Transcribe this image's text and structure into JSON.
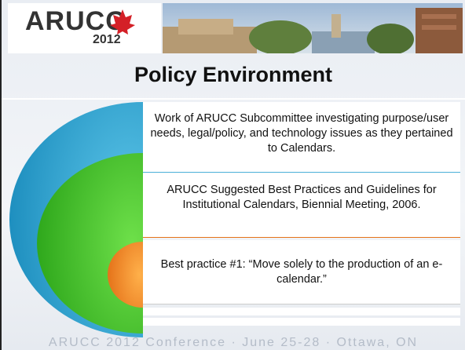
{
  "header": {
    "logo_text": "ARUCC",
    "logo_year": "2012"
  },
  "title": "Policy Environment",
  "items": [
    "Work of ARUCC Subcommittee investigating purpose/user needs, legal/policy, and technology issues as they pertained to Calendars.",
    "ARUCC Suggested Best Practices and Guidelines for Institutional Calendars, Biennial Meeting, 2006.",
    "Best practice #1: “Move solely to the production of an e-calendar.”"
  ],
  "footer": "ARUCC 2012 Conference · June 25-28 · Ottawa, ON"
}
